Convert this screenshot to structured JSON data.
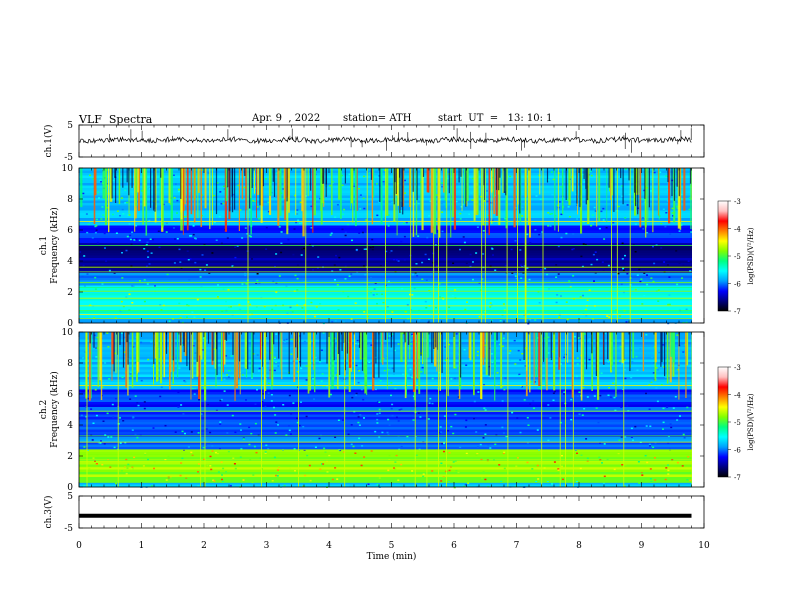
{
  "header": {
    "title": "VLF  Spectra",
    "date": "Apr. 9  , 2022",
    "station": "station= ATH",
    "start": "start  UT  =   13: 10: 1"
  },
  "colors": {
    "trace": "#000000",
    "colormap": [
      "#000000",
      "#000080",
      "#0000ff",
      "#00a0ff",
      "#00ffff",
      "#00ff80",
      "#80ff00",
      "#ffff00",
      "#ff8000",
      "#ff0000",
      "#ffc0c0",
      "#ffffff"
    ]
  },
  "chart_data": [
    {
      "type": "line",
      "panel": "ch1-waveform",
      "ylabel": "ch.1(V)",
      "ylim": [
        -5,
        5
      ],
      "yticks": [
        "5",
        "-5"
      ],
      "xlim": [
        0,
        10
      ],
      "series": [
        {
          "x": [
            0,
            9.8
          ],
          "y": [
            0.3,
            0.3
          ]
        }
      ]
    },
    {
      "type": "heatmap",
      "panel": "ch1-spectrogram",
      "ylabel": "ch.1\nFrequency (kHz)",
      "ylim": [
        0,
        10
      ],
      "yticks": [
        "0",
        "2",
        "4",
        "6",
        "8",
        "10"
      ],
      "xlim": [
        0,
        10
      ],
      "colorbar": {
        "label": "log(PSD)(V²/Hz)",
        "range": [
          -7,
          -3
        ],
        "ticks": [
          "-3",
          "-4",
          "-5",
          "-6",
          "-7"
        ]
      }
    },
    {
      "type": "heatmap",
      "panel": "ch2-spectrogram",
      "ylabel": "ch.2\nFrequency (kHz)",
      "ylim": [
        0,
        10
      ],
      "yticks": [
        "0",
        "2",
        "4",
        "6",
        "8",
        "10"
      ],
      "xlim": [
        0,
        10
      ],
      "colorbar": {
        "label": "log(PSD)(V²/Hz)",
        "range": [
          -7,
          -3
        ],
        "ticks": [
          "-3",
          "-4",
          "-5",
          "-6",
          "-7"
        ]
      }
    },
    {
      "type": "line",
      "panel": "ch3-waveform",
      "ylabel": "ch.3(V)",
      "ylim": [
        -5,
        5
      ],
      "yticks": [
        "5",
        "-5"
      ],
      "xlim": [
        0,
        10
      ],
      "series": [
        {
          "x": [
            0,
            9.8
          ],
          "y": [
            -1.2,
            -1.2
          ]
        }
      ]
    }
  ],
  "xaxis": {
    "label": "Time  (min)",
    "ticks": [
      "0",
      "1",
      "2",
      "3",
      "4",
      "5",
      "6",
      "7",
      "8",
      "9",
      "10"
    ]
  }
}
